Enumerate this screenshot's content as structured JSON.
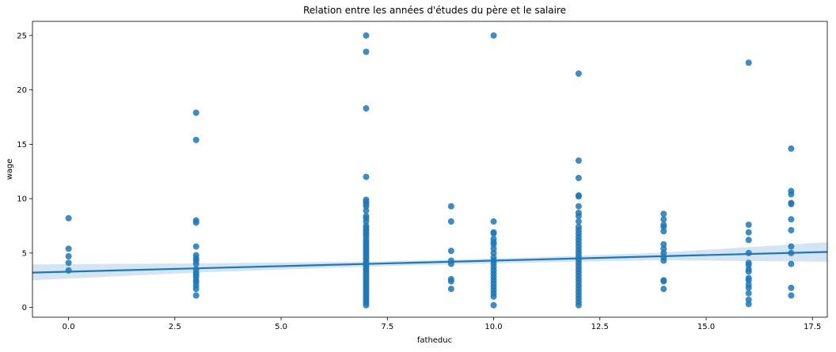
{
  "chart_data": {
    "type": "scatter",
    "title": "Relation entre les années d'études du père et le salaire",
    "xlabel": "fatheduc",
    "ylabel": "wage",
    "xlim": [
      -0.85,
      17.85
    ],
    "ylim": [
      -0.9,
      26.3
    ],
    "xticks": [
      "0.0",
      "2.5",
      "5.0",
      "7.5",
      "10.0",
      "12.5",
      "15.0",
      "17.5"
    ],
    "yticks": [
      "0",
      "5",
      "10",
      "15",
      "20",
      "25"
    ],
    "grid": false,
    "point_color": "#1f77b4",
    "line_color": "#1f77b4",
    "ci_color": "#c6dbef",
    "points": [
      {
        "x": 0,
        "wages": [
          8.2,
          5.4,
          4.7,
          4.1,
          3.4
        ]
      },
      {
        "x": 3,
        "wages": [
          17.9,
          15.4,
          8.0,
          7.8,
          5.6,
          4.8,
          4.5,
          4.3,
          4.0,
          3.5,
          3.2,
          3.0,
          2.8,
          2.5,
          2.3,
          2.0,
          1.7,
          1.1
        ]
      },
      {
        "x": 7,
        "wages": [
          25.0,
          23.5,
          18.3,
          12.0,
          9.9,
          9.7,
          9.5,
          9.3,
          8.9,
          8.4,
          8.2,
          7.9,
          7.5,
          7.3,
          7.1,
          6.9,
          6.7,
          6.5,
          6.2,
          6.0,
          5.8,
          5.6,
          5.4,
          5.2,
          5.0,
          4.8,
          4.6,
          4.4,
          4.2,
          4.0,
          3.8,
          3.6,
          3.4,
          3.2,
          3.0,
          2.8,
          2.6,
          2.4,
          2.2,
          2.0,
          1.8,
          1.6,
          1.4,
          1.2,
          1.0,
          0.8,
          0.6,
          0.4,
          0.2
        ]
      },
      {
        "x": 9,
        "wages": [
          9.3,
          7.9,
          5.2,
          4.3,
          4.0,
          2.6,
          2.4,
          1.7
        ]
      },
      {
        "x": 10,
        "wages": [
          25.0,
          7.9,
          6.9,
          6.8,
          6.3,
          6.0,
          5.8,
          5.4,
          5.0,
          4.6,
          4.3,
          4.0,
          3.7,
          3.4,
          3.1,
          2.8,
          2.5,
          2.2,
          1.9,
          1.6,
          1.3,
          1.0,
          0.2
        ]
      },
      {
        "x": 12,
        "wages": [
          21.5,
          13.5,
          11.9,
          10.3,
          10.2,
          9.3,
          8.7,
          8.4,
          7.9,
          7.4,
          7.1,
          6.8,
          6.5,
          6.2,
          5.9,
          5.6,
          5.3,
          5.0,
          4.7,
          4.4,
          4.1,
          3.8,
          3.5,
          3.2,
          2.9,
          2.6,
          2.3,
          2.0,
          1.7,
          1.4,
          1.1,
          0.8,
          0.5,
          0.2
        ]
      },
      {
        "x": 14,
        "wages": [
          8.6,
          8.1,
          7.6,
          7.4,
          7.0,
          5.8,
          5.4,
          5.0,
          4.6,
          4.3,
          2.5,
          2.4,
          1.7
        ]
      },
      {
        "x": 16,
        "wages": [
          22.5,
          7.6,
          6.9,
          6.2,
          5.0,
          4.1,
          3.9,
          3.5,
          3.3,
          2.7,
          2.5,
          2.1,
          1.8,
          1.3,
          0.7,
          0.3
        ]
      },
      {
        "x": 17,
        "wages": [
          14.6,
          10.7,
          10.4,
          9.6,
          9.5,
          8.1,
          7.1,
          5.6,
          5.0,
          4.0,
          1.8,
          1.1
        ]
      }
    ],
    "regression": {
      "x": [
        -0.85,
        17.85
      ],
      "y": [
        3.2,
        5.1
      ]
    },
    "confidence_band": {
      "x": [
        -0.85,
        3,
        7,
        10,
        12,
        14,
        17.85
      ],
      "lower": [
        2.5,
        3.2,
        3.75,
        4.05,
        4.2,
        4.35,
        4.2
      ],
      "upper": [
        3.95,
        4.05,
        4.2,
        4.5,
        4.75,
        5.05,
        6.0
      ]
    }
  }
}
